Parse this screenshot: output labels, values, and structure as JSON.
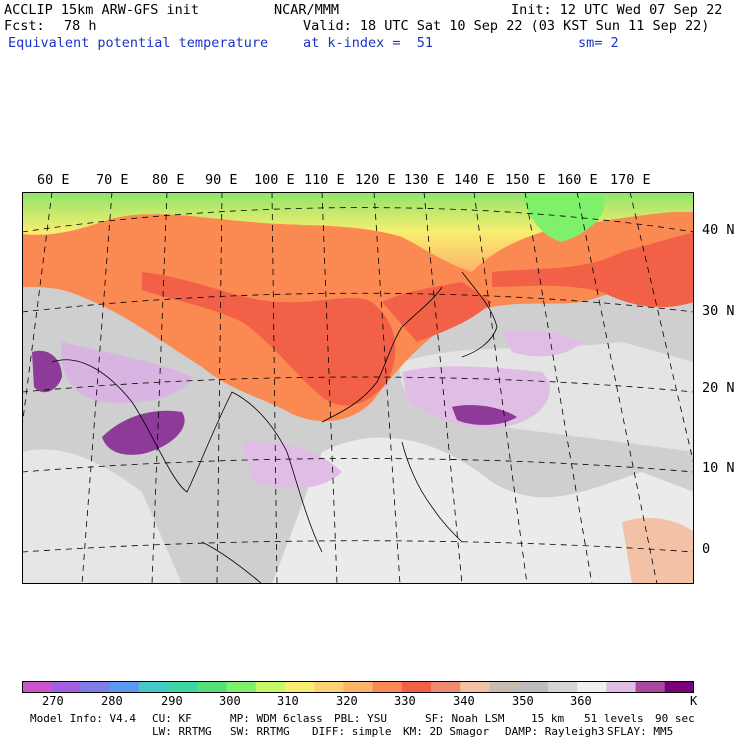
{
  "header": {
    "title_left": "ACCLIP 15km ARW-GFS init",
    "center": "NCAR/MMM",
    "init": "Init: 12 UTC Wed 07 Sep 22",
    "fcst_label": "Fcst:",
    "fcst_value": "78 h",
    "valid": "Valid: 18 UTC Sat 10 Sep 22 (03 KST Sun 11 Sep 22)",
    "field_name": "Equivalent potential temperature",
    "level": "at k-index =  51",
    "smoothing": "sm= 2"
  },
  "map": {
    "longitude_labels": [
      "60 E",
      "70 E",
      "80 E",
      "90 E",
      "100 E",
      "110 E",
      "120 E",
      "130 E",
      "140 E",
      "150 E",
      "160 E",
      "170 E"
    ],
    "latitude_labels": [
      "40 N",
      "30 N",
      "20 N",
      "10 N",
      "0"
    ],
    "projection": "polar stereographic with dashed lat/lon grid",
    "field_colors": {
      "cold_north": "#a8e85a",
      "warm_land": "#fb8a52",
      "hot_land": "#f26048",
      "tropical_ocean": "#cfcfcf",
      "high_theta": "#d8b4e2"
    }
  },
  "colorbar": {
    "colors": [
      "#cc55cc",
      "#a25fe0",
      "#7f7ee9",
      "#5b99f0",
      "#44c8c8",
      "#3fd6a6",
      "#55e07a",
      "#7ff06a",
      "#c6f86a",
      "#f8ee70",
      "#fcd272",
      "#fcb36a",
      "#fb8a52",
      "#f26048",
      "#f08a6e",
      "#f3c2a6",
      "#c8bcb1",
      "#bdbdbd",
      "#d4d4d4",
      "#f0f0f0",
      "#e0bde4",
      "#a8489e",
      "#7a007a"
    ],
    "tick_labels": [
      "270",
      "280",
      "290",
      "300",
      "310",
      "320",
      "330",
      "340",
      "350",
      "360"
    ],
    "unit": "K"
  },
  "footer": {
    "model_info": "Model Info: V4.4",
    "cu": "CU: KF",
    "mp": "MP: WDM 6class",
    "pbl": "PBL: YSU",
    "sf": "SF: Noah LSM",
    "res": "15 km",
    "levels": "51 levels",
    "dt": "90 sec",
    "lw": "LW: RRTMG",
    "sw": "SW: RRTMG",
    "diff": "DIFF: simple",
    "km": "KM: 2D Smagor",
    "damp": "DAMP: Rayleigh3",
    "sflay": "SFLAY: MM5"
  }
}
